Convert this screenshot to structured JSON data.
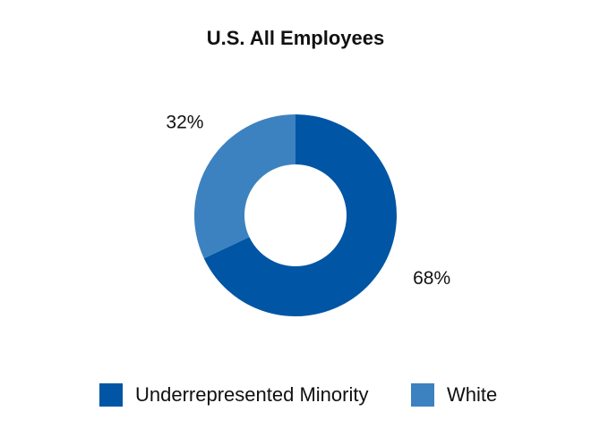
{
  "chart_data": {
    "type": "pie",
    "donut": true,
    "title": "U.S. All Employees",
    "categories": [
      "Underrepresented Minority",
      "White"
    ],
    "values": [
      68,
      32
    ],
    "value_labels": [
      "68%",
      "32%"
    ],
    "unit": "%",
    "colors": [
      "#0055a5",
      "#3c82c0"
    ],
    "legend_position": "bottom",
    "grid": false
  }
}
